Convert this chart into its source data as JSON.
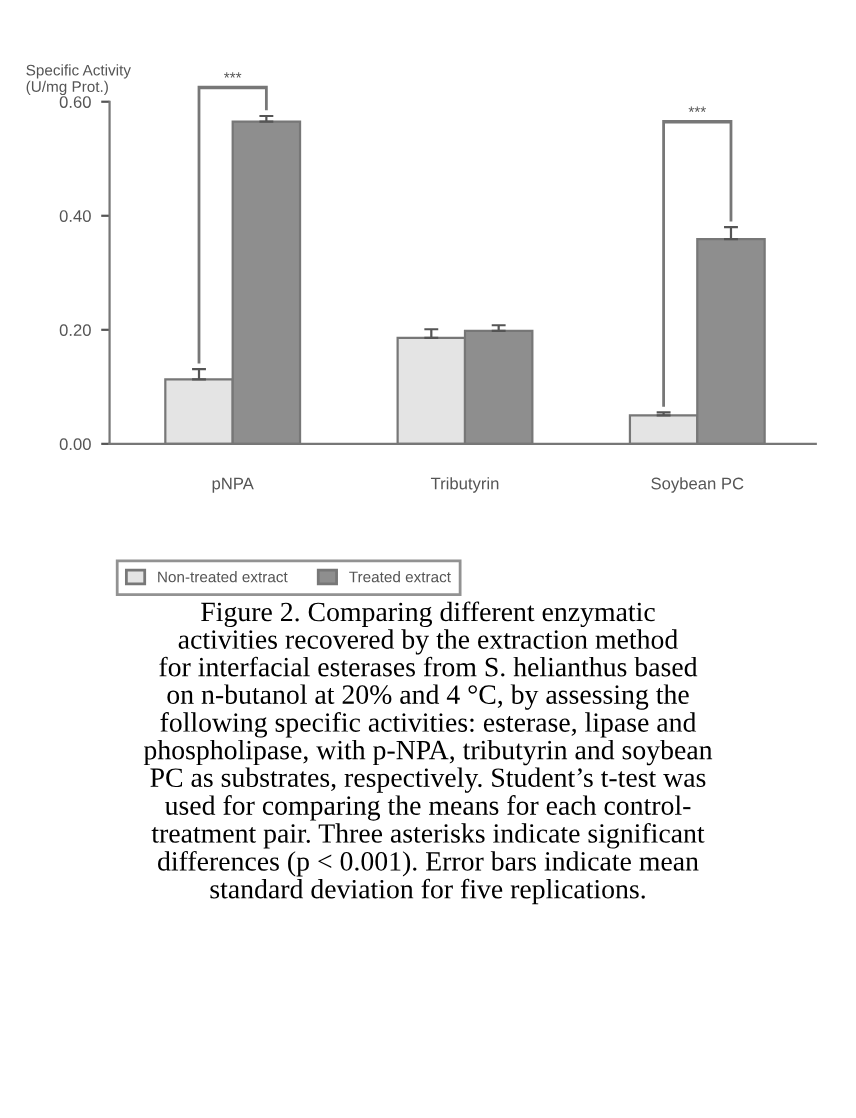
{
  "chart_data": {
    "type": "bar",
    "ylabel": "Specific Activity\n(U/mg Prot.)",
    "categories": [
      "pNPA",
      "Tributyrin",
      "Soybean PC"
    ],
    "series": [
      {
        "name": "Non-treated extract",
        "color": "#e4e4e4",
        "values": [
          0.113,
          0.186,
          0.05
        ],
        "errors": [
          0.018,
          0.015,
          0.005
        ]
      },
      {
        "name": "Treated extract",
        "color": "#8e8e8e",
        "values": [
          0.565,
          0.198,
          0.359
        ],
        "errors": [
          0.01,
          0.01,
          0.021
        ]
      }
    ],
    "ylim": [
      0,
      0.6
    ],
    "yticks": [
      {
        "value": 0,
        "label": "0.00"
      },
      {
        "value": 0.2,
        "label": "0.20"
      },
      {
        "value": 0.4,
        "label": "0.40"
      },
      {
        "value": 0.6,
        "label": "0.60"
      }
    ],
    "grid": false,
    "legend": "bottom left",
    "annotations": [
      "***",
      "***",
      "Figure 2. Comparing different enzymatic\nactivities recovered by the extraction method\nfor interfacial esterases from S. helianthus based\non n-butanol at 20% and 4 °C, by assessing the\nfollowing specific activities: esterase, lipase and\nphospholipase, with p-NPA, tributyrin and soybean\nPC as substrates, respectively. Student’s t-test was\nused for comparing the means for each control-\ntreatment pair. Three asterisks indicate significant\ndifferences (p < 0.001). Error bars indicate mean\nstandard deviation for five replications."
    ]
  }
}
